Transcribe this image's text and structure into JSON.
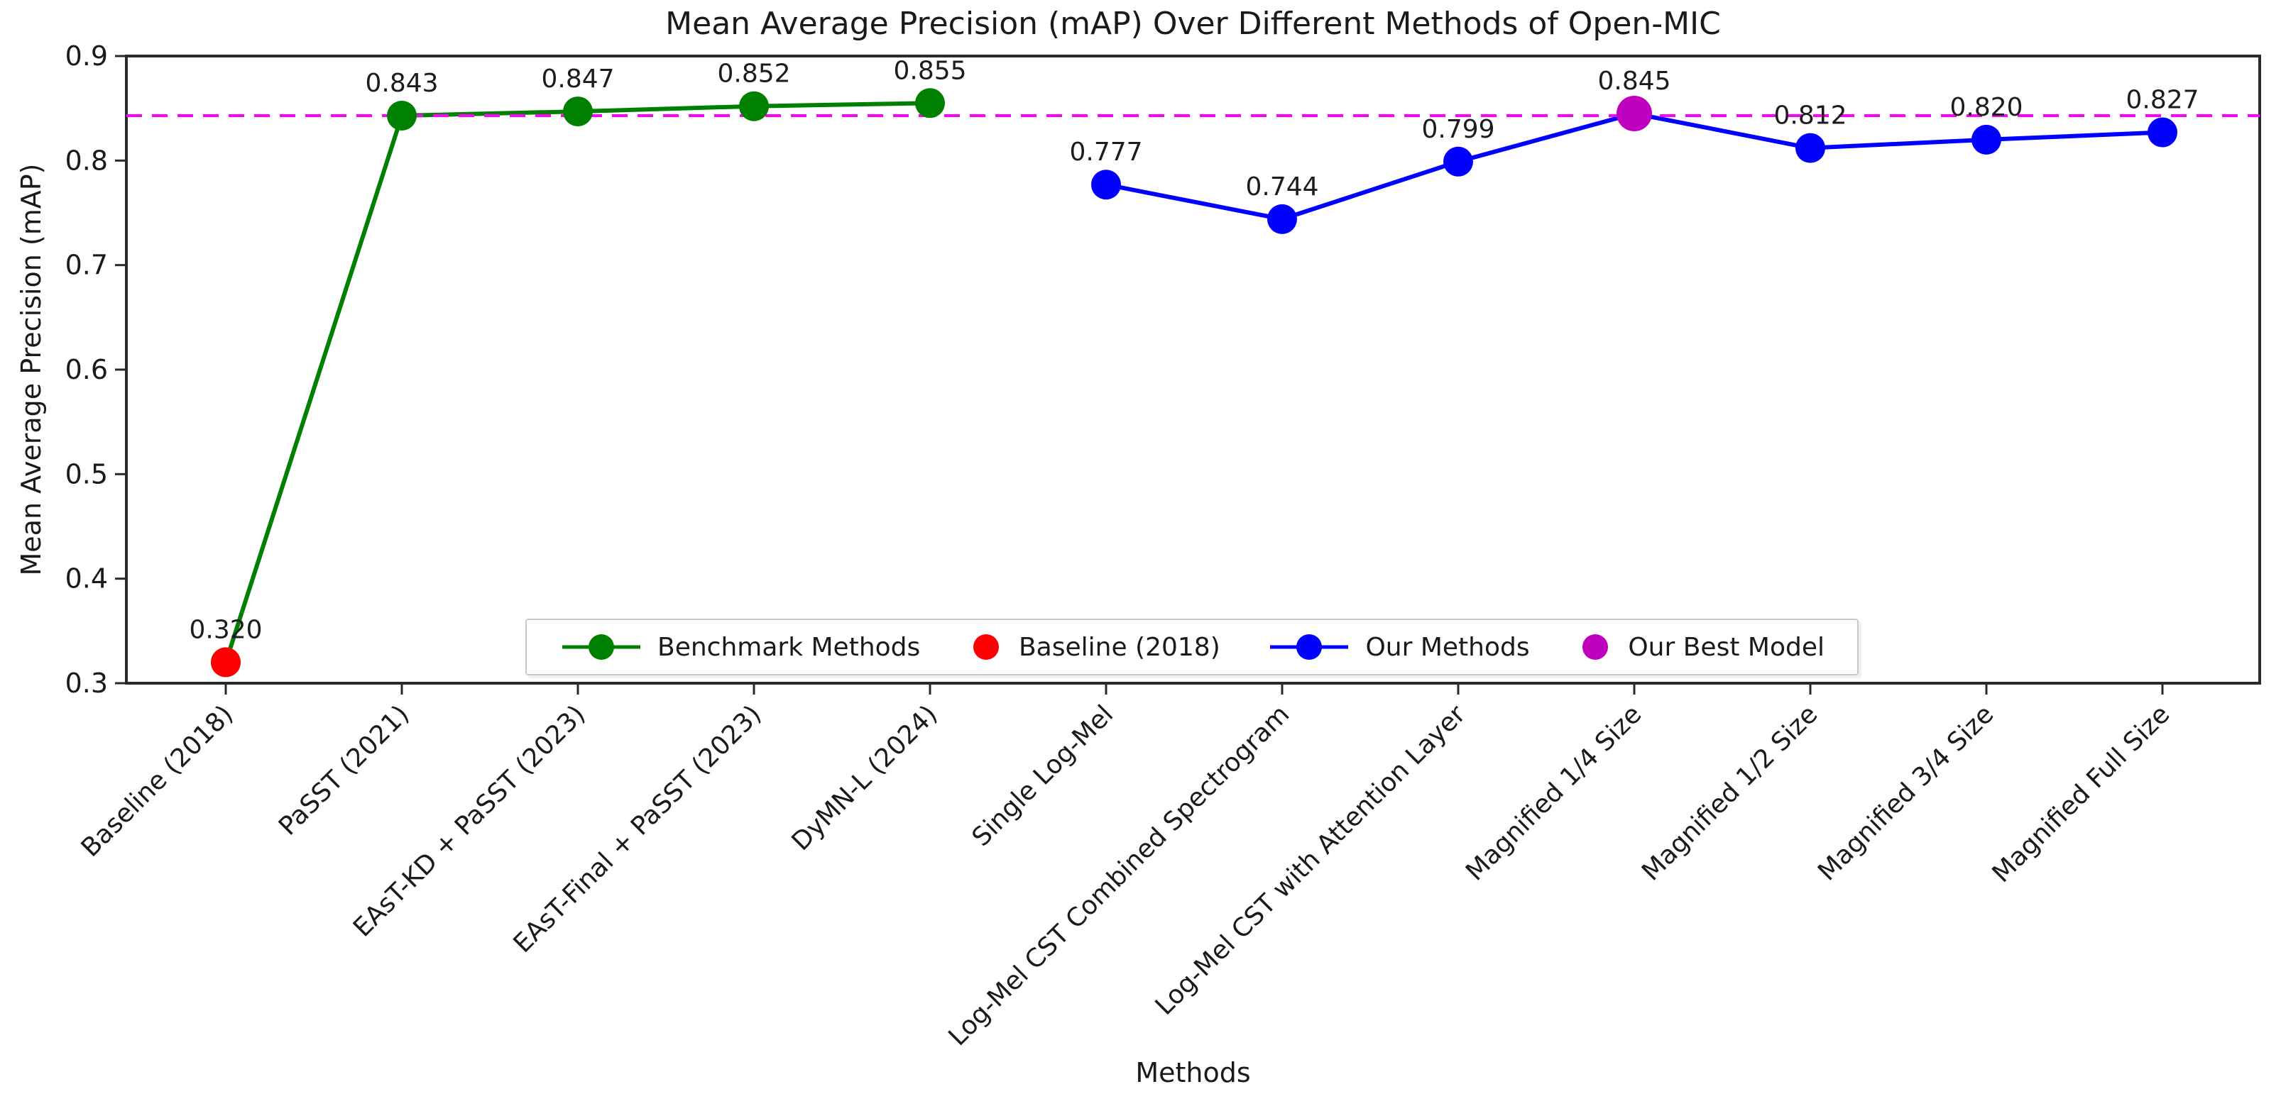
{
  "chart_data": {
    "type": "line",
    "title": "Mean Average Precision (mAP) Over Different Methods of Open-MIC",
    "xlabel": "Methods",
    "ylabel": "Mean Average Precision (mAP)",
    "ylim": [
      0.3,
      0.9
    ],
    "yticks": [
      0.3,
      0.4,
      0.5,
      0.6,
      0.7,
      0.8,
      0.9
    ],
    "grid": false,
    "legend_position": "lower center",
    "categories": [
      "Baseline (2018)",
      "PaSST (2021)",
      "EAsT-KD + PaSST (2023)",
      "EAsT-Final + PaSST (2023)",
      "DyMN-L (2024)",
      "Single Log-Mel",
      "Log-Mel CST Combined Spectrogram",
      "Log-Mel CST with Attention Layer",
      "Magnified 1/4 Size",
      "Magnified 1/2 Size",
      "Magnified 3/4 Size",
      "Magnified Full Size"
    ],
    "series": [
      {
        "name": "Benchmark Methods",
        "color": "#008000",
        "marker": "circle",
        "line": true,
        "x": [
          0,
          1,
          2,
          3,
          4
        ],
        "values": [
          0.32,
          0.843,
          0.847,
          0.852,
          0.855
        ]
      },
      {
        "name": "Baseline (2018)",
        "color": "#ff0000",
        "marker": "circle",
        "line": false,
        "x": [
          0
        ],
        "values": [
          0.32
        ]
      },
      {
        "name": "Our Methods",
        "color": "#0000ff",
        "marker": "circle",
        "line": true,
        "x": [
          5,
          6,
          7,
          8,
          9,
          10,
          11
        ],
        "values": [
          0.777,
          0.744,
          0.799,
          0.845,
          0.812,
          0.82,
          0.827
        ]
      },
      {
        "name": "Our Best Model",
        "color": "#bf00bf",
        "marker": "circle",
        "line": false,
        "x": [
          8
        ],
        "values": [
          0.845
        ]
      }
    ],
    "point_label_format": "3-decimals",
    "reference_line": {
      "value": 0.843,
      "color": "#ff00ff",
      "style": "dashed"
    },
    "axis_color": "#2a2a2a",
    "text_color": "#1a1a1a"
  }
}
